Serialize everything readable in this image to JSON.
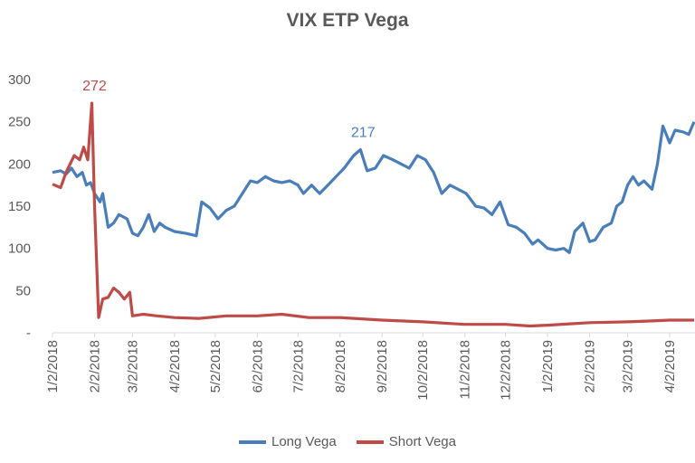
{
  "chart_data": {
    "type": "line",
    "title": "VIX ETP Vega",
    "xlabel": "",
    "ylabel": "",
    "ylim": [
      0,
      300
    ],
    "xlim": [
      "1/2/2018",
      "4/20/2019"
    ],
    "yticks": [
      {
        "value": 0,
        "label": "-"
      },
      {
        "value": 50,
        "label": "50"
      },
      {
        "value": 100,
        "label": "100"
      },
      {
        "value": 150,
        "label": "150"
      },
      {
        "value": 200,
        "label": "200"
      },
      {
        "value": 250,
        "label": "250"
      },
      {
        "value": 300,
        "label": "300"
      }
    ],
    "xticks": [
      "1/2/2018",
      "2/2/2018",
      "3/2/2018",
      "4/2/2018",
      "5/2/2018",
      "6/2/2018",
      "7/2/2018",
      "8/2/2018",
      "9/2/2018",
      "10/2/2018",
      "11/2/2018",
      "12/2/2018",
      "1/2/2019",
      "2/2/2019",
      "3/2/2019",
      "4/2/2019"
    ],
    "grid": false,
    "legend": "bottom",
    "series": [
      {
        "name": "Long Vega",
        "color": "#4a7ebb",
        "points": [
          [
            "1/2/2018",
            190
          ],
          [
            "1/8/2018",
            192
          ],
          [
            "1/12/2018",
            188
          ],
          [
            "1/16/2018",
            195
          ],
          [
            "1/20/2018",
            185
          ],
          [
            "1/24/2018",
            190
          ],
          [
            "1/27/2018",
            175
          ],
          [
            "1/30/2018",
            178
          ],
          [
            "2/2/2018",
            165
          ],
          [
            "2/6/2018",
            155
          ],
          [
            "2/8/2018",
            165
          ],
          [
            "2/12/2018",
            125
          ],
          [
            "2/16/2018",
            130
          ],
          [
            "2/20/2018",
            140
          ],
          [
            "2/26/2018",
            135
          ],
          [
            "3/2/2018",
            118
          ],
          [
            "3/6/2018",
            115
          ],
          [
            "3/10/2018",
            125
          ],
          [
            "3/14/2018",
            140
          ],
          [
            "3/18/2018",
            120
          ],
          [
            "3/22/2018",
            130
          ],
          [
            "3/26/2018",
            125
          ],
          [
            "4/2/2018",
            120
          ],
          [
            "4/10/2018",
            118
          ],
          [
            "4/18/2018",
            115
          ],
          [
            "4/22/2018",
            155
          ],
          [
            "4/28/2018",
            148
          ],
          [
            "5/4/2018",
            135
          ],
          [
            "5/10/2018",
            145
          ],
          [
            "5/16/2018",
            150
          ],
          [
            "5/22/2018",
            165
          ],
          [
            "5/28/2018",
            180
          ],
          [
            "6/2/2018",
            178
          ],
          [
            "6/8/2018",
            185
          ],
          [
            "6/14/2018",
            180
          ],
          [
            "6/20/2018",
            178
          ],
          [
            "6/26/2018",
            180
          ],
          [
            "7/2/2018",
            175
          ],
          [
            "7/6/2018",
            165
          ],
          [
            "7/12/2018",
            175
          ],
          [
            "7/18/2018",
            165
          ],
          [
            "7/24/2018",
            175
          ],
          [
            "7/30/2018",
            185
          ],
          [
            "8/5/2018",
            195
          ],
          [
            "8/12/2018",
            210
          ],
          [
            "8/17/2018",
            217
          ],
          [
            "8/22/2018",
            192
          ],
          [
            "8/28/2018",
            195
          ],
          [
            "9/3/2018",
            210
          ],
          [
            "9/10/2018",
            205
          ],
          [
            "9/16/2018",
            200
          ],
          [
            "9/22/2018",
            195
          ],
          [
            "9/28/2018",
            210
          ],
          [
            "10/4/2018",
            205
          ],
          [
            "10/10/2018",
            190
          ],
          [
            "10/16/2018",
            165
          ],
          [
            "10/22/2018",
            175
          ],
          [
            "10/28/2018",
            170
          ],
          [
            "11/3/2018",
            165
          ],
          [
            "11/10/2018",
            150
          ],
          [
            "11/16/2018",
            148
          ],
          [
            "11/22/2018",
            140
          ],
          [
            "11/28/2018",
            155
          ],
          [
            "12/4/2018",
            128
          ],
          [
            "12/10/2018",
            125
          ],
          [
            "12/16/2018",
            118
          ],
          [
            "12/22/2018",
            105
          ],
          [
            "12/26/2018",
            110
          ],
          [
            "1/2/2019",
            100
          ],
          [
            "1/8/2019",
            98
          ],
          [
            "1/14/2019",
            100
          ],
          [
            "1/18/2019",
            95
          ],
          [
            "1/22/2019",
            120
          ],
          [
            "1/28/2019",
            130
          ],
          [
            "2/2/2019",
            108
          ],
          [
            "2/6/2019",
            110
          ],
          [
            "2/12/2019",
            125
          ],
          [
            "2/18/2019",
            130
          ],
          [
            "2/22/2019",
            150
          ],
          [
            "2/26/2019",
            155
          ],
          [
            "3/2/2019",
            175
          ],
          [
            "3/6/2019",
            185
          ],
          [
            "3/10/2019",
            175
          ],
          [
            "3/14/2019",
            180
          ],
          [
            "3/20/2019",
            170
          ],
          [
            "3/24/2019",
            200
          ],
          [
            "3/28/2019",
            245
          ],
          [
            "4/2/2019",
            225
          ],
          [
            "4/6/2019",
            240
          ],
          [
            "4/12/2019",
            238
          ],
          [
            "4/16/2019",
            235
          ],
          [
            "4/20/2019",
            250
          ]
        ]
      },
      {
        "name": "Short Vega",
        "color": "#be4b48",
        "points": [
          [
            "1/2/2018",
            176
          ],
          [
            "1/8/2018",
            172
          ],
          [
            "1/12/2018",
            190
          ],
          [
            "1/18/2018",
            210
          ],
          [
            "1/22/2018",
            205
          ],
          [
            "1/25/2018",
            220
          ],
          [
            "1/28/2018",
            205
          ],
          [
            "1/31/2018",
            272
          ],
          [
            "2/2/2018",
            150
          ],
          [
            "2/5/2018",
            18
          ],
          [
            "2/8/2018",
            40
          ],
          [
            "2/12/2018",
            42
          ],
          [
            "2/16/2018",
            53
          ],
          [
            "2/20/2018",
            48
          ],
          [
            "2/24/2018",
            40
          ],
          [
            "2/28/2018",
            48
          ],
          [
            "3/2/2018",
            20
          ],
          [
            "3/10/2018",
            22
          ],
          [
            "3/20/2018",
            20
          ],
          [
            "4/2/2018",
            18
          ],
          [
            "4/20/2018",
            17
          ],
          [
            "5/10/2018",
            20
          ],
          [
            "6/2/2018",
            20
          ],
          [
            "6/20/2018",
            22
          ],
          [
            "7/10/2018",
            18
          ],
          [
            "8/2/2018",
            18
          ],
          [
            "9/2/2018",
            15
          ],
          [
            "10/2/2018",
            13
          ],
          [
            "11/2/2018",
            10
          ],
          [
            "12/2/2018",
            10
          ],
          [
            "12/20/2018",
            8
          ],
          [
            "1/2/2019",
            9
          ],
          [
            "2/2/2019",
            12
          ],
          [
            "3/2/2019",
            13
          ],
          [
            "3/20/2019",
            14
          ],
          [
            "4/2/2019",
            15
          ],
          [
            "4/20/2019",
            15
          ]
        ]
      }
    ],
    "annotations": [
      {
        "series": "Short Vega",
        "date": "1/31/2018",
        "value": 272,
        "text": "272"
      },
      {
        "series": "Long Vega",
        "date": "8/17/2018",
        "value": 217,
        "text": "217"
      }
    ]
  }
}
